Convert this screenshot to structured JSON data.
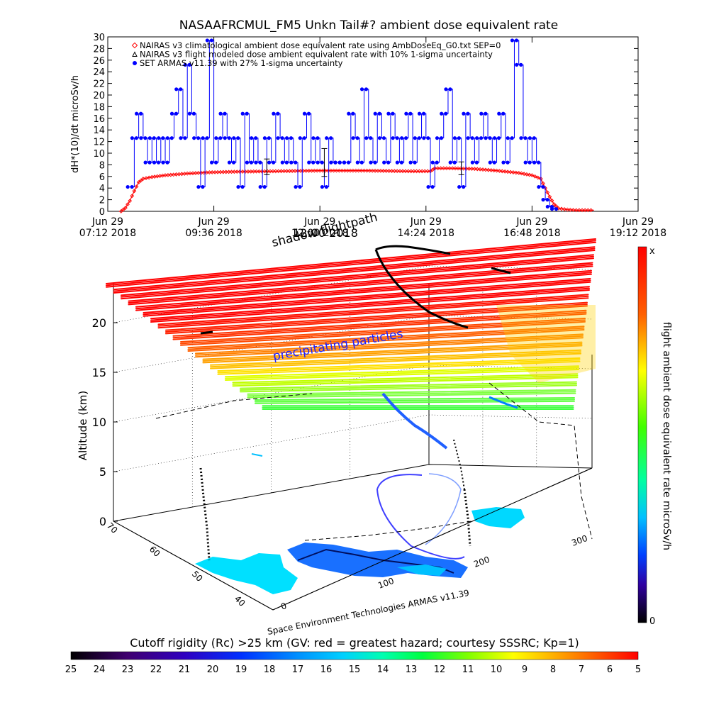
{
  "top_chart_title": "NASAAFRCMUL_FM5 Unkn Tail#? ambient dose equivalent rate",
  "chart_data": [
    {
      "type": "line",
      "title": "NASAAFRCMUL_FM5 Unkn Tail#? ambient dose equivalent rate",
      "ylabel": "dH*(10)/dt microSv/h",
      "xlabel": "",
      "ylim": [
        0,
        30
      ],
      "y_ticks": [
        0,
        2,
        4,
        6,
        8,
        10,
        12,
        14,
        16,
        18,
        20,
        22,
        24,
        26,
        28,
        30
      ],
      "x_ticks": [
        {
          "line1": "Jun 29",
          "line2": "07:12 2018",
          "hour": 7.2
        },
        {
          "line1": "Jun 29",
          "line2": "09:36 2018",
          "hour": 9.6
        },
        {
          "line1": "Jun 29",
          "line2": "12:00 2018",
          "hour": 12.0
        },
        {
          "line1": "Jun 29",
          "line2": "14:24 2018",
          "hour": 14.4
        },
        {
          "line1": "Jun 29",
          "line2": "16:48 2018",
          "hour": 16.8
        },
        {
          "line1": "Jun 29",
          "line2": "19:12 2018",
          "hour": 19.2
        }
      ],
      "xlim_hours": [
        7.2,
        19.2
      ],
      "legend": [
        {
          "label": "NAIRAS v3 climatological ambient dose equivalent rate using AmbDoseEq_G0.txt SEP=0",
          "color": "#ff0000",
          "marker": "diamond"
        },
        {
          "label": "NAIRAS v3 flight modeled dose ambient equivalent rate with 10% 1-sigma uncertainty",
          "color": "#000000",
          "marker": "triangle"
        },
        {
          "label": "SET ARMAS v11.39 with 27% 1-sigma uncertainty",
          "color": "#0000ff",
          "marker": "dot"
        }
      ],
      "series": [
        {
          "name": "NAIRAS v3 climatological ambient dose equivalent rate using AmbDoseEq_G0.txt SEP=0",
          "color": "#ff0000",
          "x": [
            7.5,
            7.6,
            7.7,
            7.8,
            7.9,
            8.0,
            8.2,
            8.5,
            9.0,
            9.5,
            10.0,
            11.0,
            12.0,
            13.0,
            14.0,
            14.5,
            14.6,
            15.0,
            15.5,
            16.0,
            16.5,
            16.8,
            17.0,
            17.1,
            17.2,
            17.3,
            17.4,
            17.6,
            17.8,
            18.0,
            18.2
          ],
          "y": [
            0.0,
            0.6,
            1.8,
            3.5,
            5.0,
            5.6,
            5.9,
            6.2,
            6.5,
            6.7,
            6.8,
            6.9,
            7.0,
            7.0,
            6.9,
            6.9,
            7.4,
            7.4,
            7.3,
            7.0,
            6.6,
            6.2,
            5.6,
            4.0,
            2.5,
            1.2,
            0.5,
            0.3,
            0.2,
            0.2,
            0.2
          ]
        },
        {
          "name": "SET ARMAS v11.39 with 27% 1-sigma uncertainty",
          "color": "#0000ff",
          "x": [
            7.7,
            7.8,
            7.9,
            8.0,
            8.1,
            8.2,
            8.3,
            8.4,
            8.5,
            8.6,
            8.7,
            8.8,
            8.9,
            9.0,
            9.1,
            9.2,
            9.3,
            9.4,
            9.5,
            9.6,
            9.7,
            9.8,
            9.9,
            10.0,
            10.1,
            10.2,
            10.3,
            10.4,
            10.5,
            10.6,
            10.7,
            10.8,
            10.9,
            11.0,
            11.1,
            11.2,
            11.3,
            11.4,
            11.5,
            11.6,
            11.7,
            11.8,
            11.9,
            12.0,
            12.1,
            12.2,
            12.3,
            12.4,
            12.5,
            12.6,
            12.7,
            12.8,
            12.9,
            13.0,
            13.1,
            13.2,
            13.3,
            13.4,
            13.5,
            13.6,
            13.7,
            13.8,
            13.9,
            14.0,
            14.1,
            14.2,
            14.3,
            14.4,
            14.5,
            14.6,
            14.7,
            14.8,
            14.9,
            15.0,
            15.1,
            15.2,
            15.3,
            15.4,
            15.5,
            15.6,
            15.7,
            15.8,
            15.9,
            16.0,
            16.1,
            16.2,
            16.3,
            16.4,
            16.5,
            16.6,
            16.7,
            16.8,
            16.9,
            17.0,
            17.1,
            17.2,
            17.3
          ],
          "y": [
            4.2,
            12.6,
            16.8,
            12.6,
            8.4,
            12.6,
            8.4,
            12.6,
            8.4,
            12.6,
            16.8,
            21.0,
            12.6,
            25.2,
            16.8,
            12.6,
            4.2,
            12.6,
            29.4,
            8.4,
            12.6,
            16.8,
            12.6,
            8.4,
            12.6,
            4.2,
            16.8,
            8.4,
            12.6,
            8.4,
            4.2,
            12.6,
            8.4,
            16.8,
            12.6,
            8.4,
            12.6,
            8.4,
            4.2,
            12.6,
            16.8,
            8.4,
            12.6,
            8.4,
            4.2,
            12.6,
            8.4,
            8.4,
            8.4,
            8.4,
            16.8,
            12.6,
            8.4,
            21.0,
            12.6,
            8.4,
            16.8,
            12.6,
            8.4,
            16.8,
            12.6,
            8.4,
            12.6,
            16.8,
            8.4,
            12.6,
            16.8,
            12.6,
            4.2,
            8.4,
            12.6,
            16.8,
            21.0,
            8.4,
            12.6,
            4.2,
            16.8,
            12.6,
            8.4,
            12.6,
            16.8,
            12.6,
            8.4,
            12.6,
            16.8,
            8.4,
            12.6,
            29.4,
            25.2,
            12.6,
            8.4,
            12.6,
            8.4,
            4.2,
            2.0,
            0.8,
            0.4
          ]
        }
      ],
      "error_bars": [
        {
          "x": 10.8,
          "y": 7.6,
          "lo": 6.3,
          "hi": 9.0
        },
        {
          "x": 12.1,
          "y": 7.3,
          "lo": 6.0,
          "hi": 10.8
        },
        {
          "x": 15.2,
          "y": 7.4,
          "lo": 6.3,
          "hi": 8.5
        }
      ]
    },
    {
      "type": "3d-scatter-surface",
      "zlabel": "Altitude (km)",
      "z_ticks": [
        0,
        5,
        10,
        15,
        20
      ],
      "x_ticks": [
        0,
        100,
        200,
        300
      ],
      "y_ticks": [
        40,
        50,
        60,
        70
      ],
      "annotations": [
        "shadow flightpath",
        "12:00 2018",
        "precipitating particles"
      ],
      "colorbar": {
        "label": "flight ambient dose equivalent rate microSv/h",
        "top_label": "x",
        "bottom_label": "0",
        "colors": [
          "#ff0000",
          "#ff8000",
          "#ffff00",
          "#00ff00",
          "#00ffff",
          "#0000ff",
          "#400080",
          "#000000"
        ]
      },
      "credit": "Space Environment Technologies ARMAS v11.39"
    },
    {
      "type": "colorbar",
      "title": "Cutoff rigidity (Rc) >25 km (GV: red = greatest hazard; courtesy SSSRC; Kp=1)",
      "labels": [
        "25",
        "24",
        "23",
        "22",
        "21",
        "20",
        "19",
        "18",
        "17",
        "16",
        "15",
        "14",
        "13",
        "12",
        "11",
        "10",
        "9",
        "8",
        "7",
        "6",
        "5"
      ],
      "colors": [
        "#000000",
        "#400070",
        "#3000c0",
        "#0030ff",
        "#0090ff",
        "#00d0ff",
        "#00ffb0",
        "#00ff40",
        "#80ff00",
        "#ffff00",
        "#ffb000",
        "#ff6000",
        "#ff0000"
      ]
    }
  ]
}
